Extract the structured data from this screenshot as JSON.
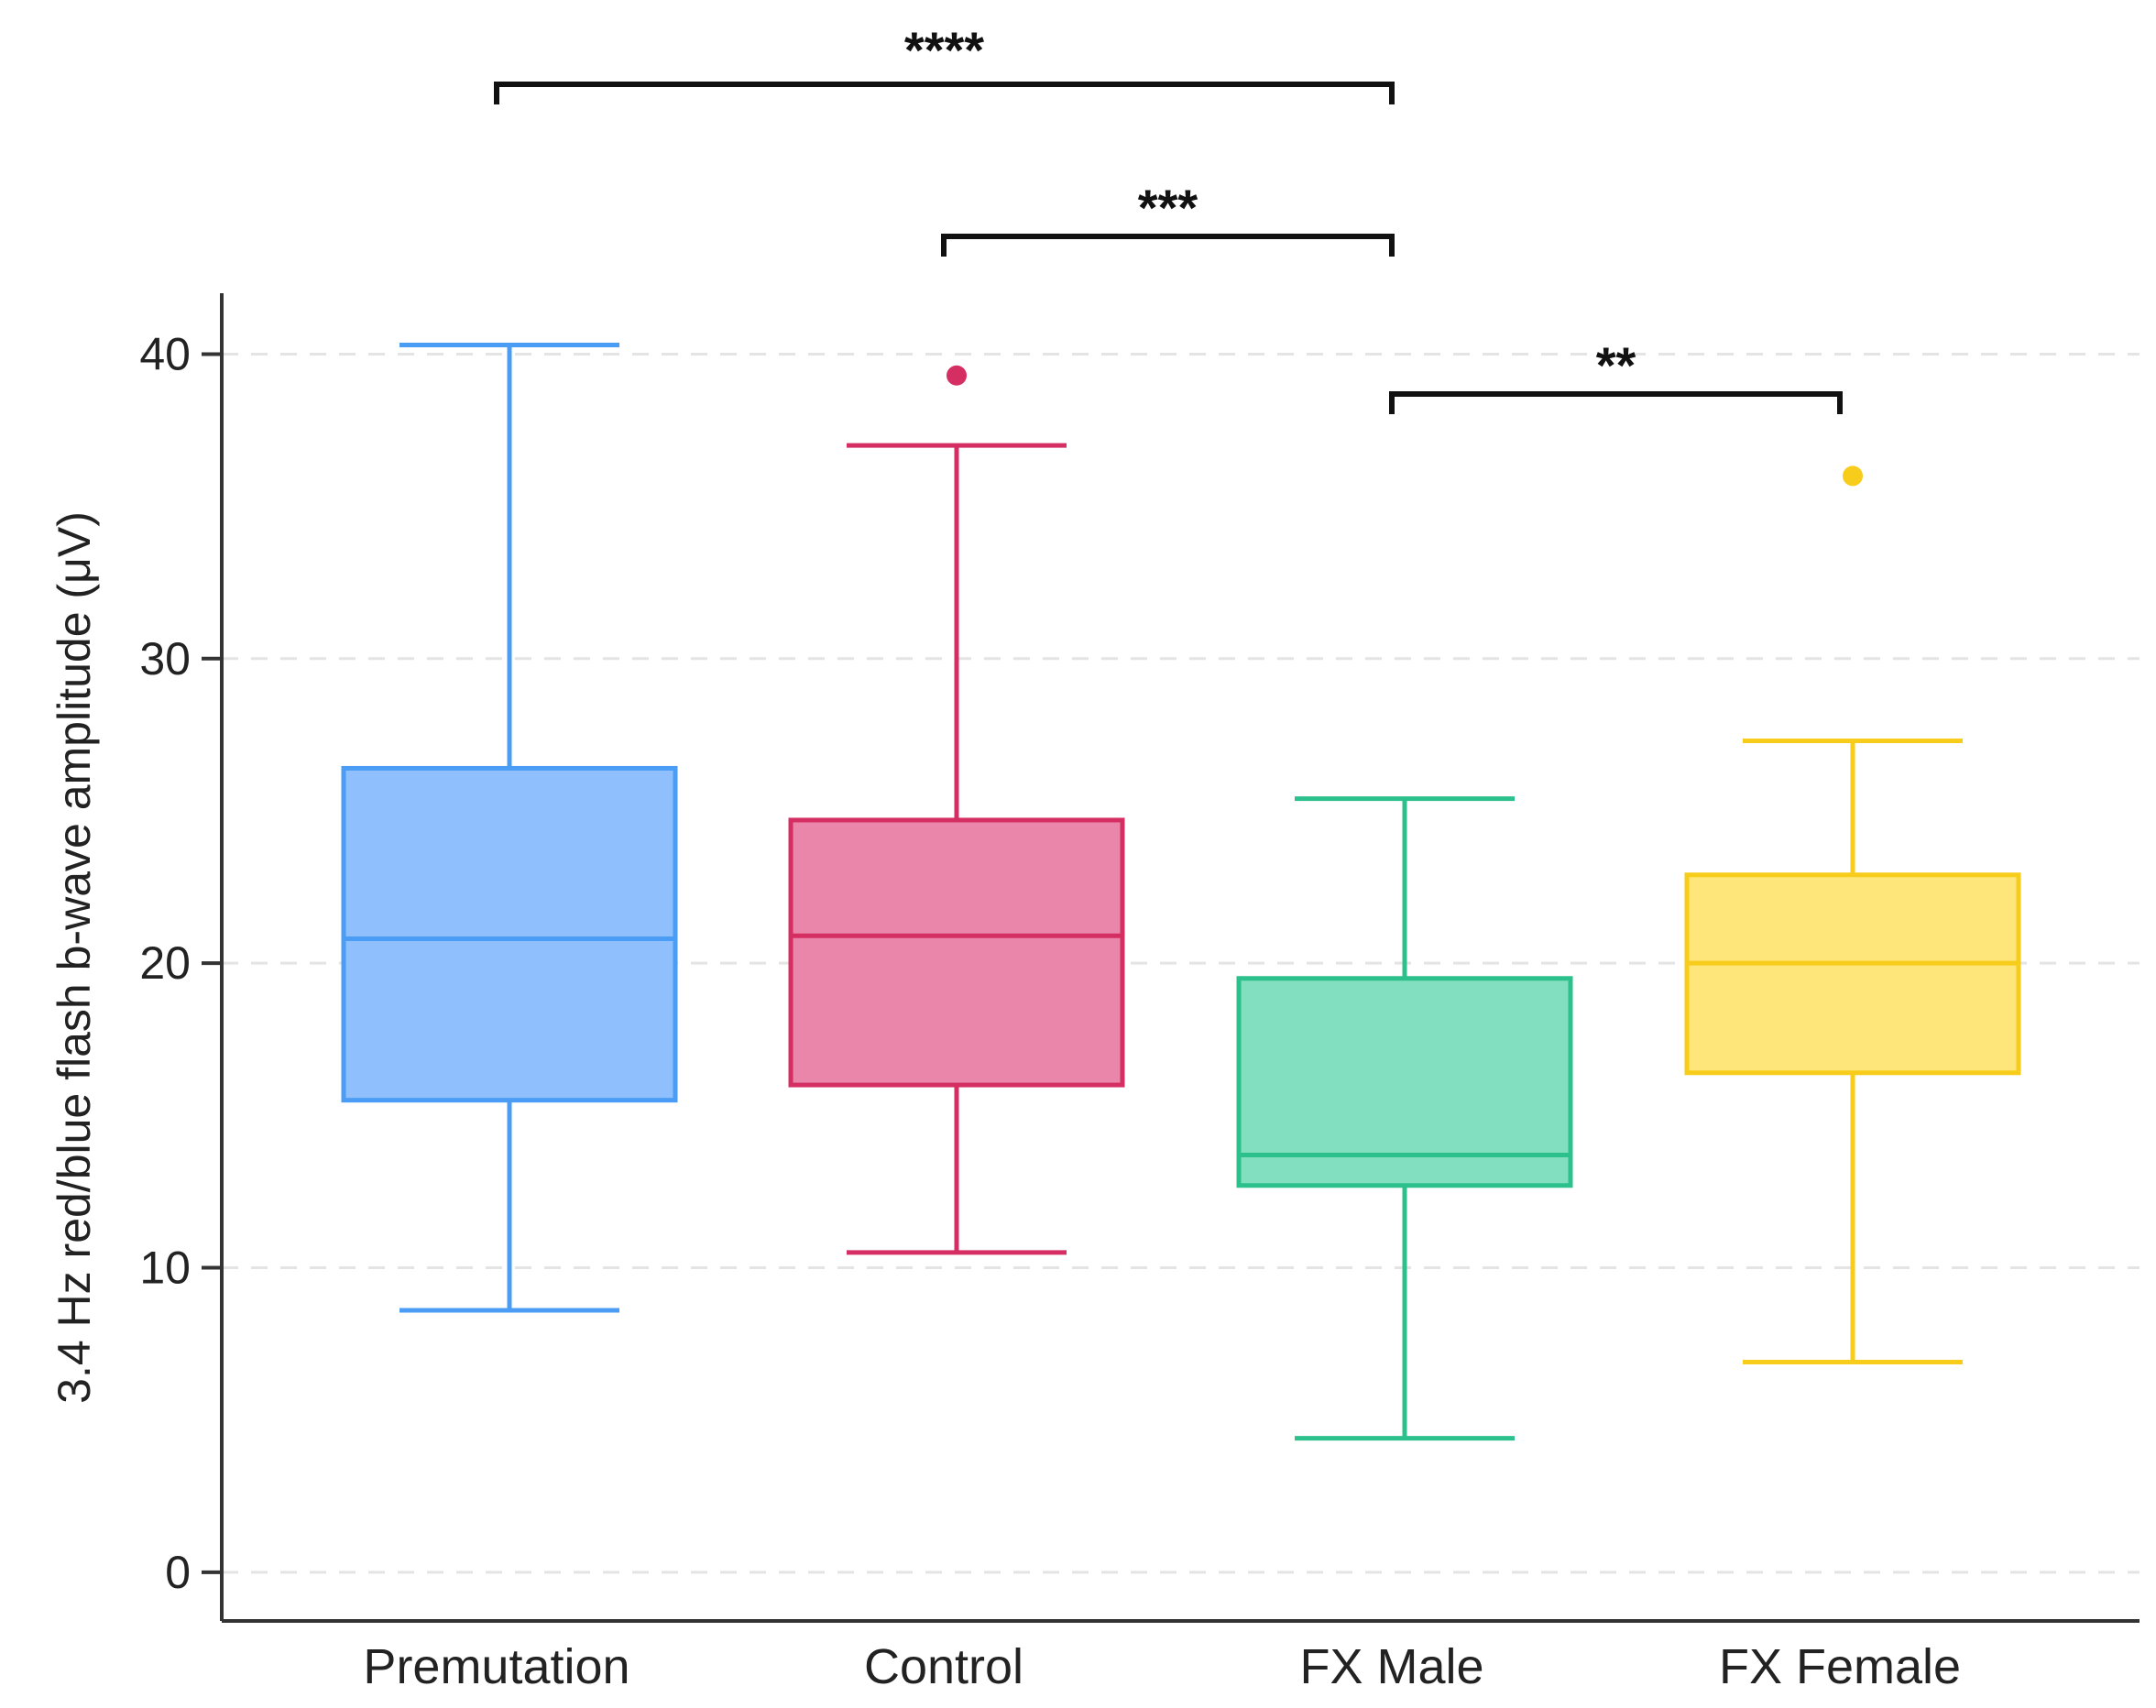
{
  "chart_data": {
    "type": "box",
    "title": "",
    "xlabel": "",
    "ylabel": "3.4 Hz red/blue flash b-wave amplitude (μV)",
    "ylim": [
      -1.6,
      42
    ],
    "yticks": [
      0,
      10,
      20,
      30,
      40
    ],
    "grid": true,
    "categories": [
      "Premutation",
      "Control",
      "FX Male",
      "FX Female"
    ],
    "boxes": [
      {
        "name": "Premutation",
        "whisker_low": 8.6,
        "q1": 15.5,
        "median": 20.8,
        "q3": 26.4,
        "whisker_high": 40.3,
        "outliers": [],
        "fill": "#8fbffc",
        "stroke": "#4a9cf5"
      },
      {
        "name": "Control",
        "whisker_low": 10.5,
        "q1": 16.0,
        "median": 20.9,
        "q3": 24.7,
        "whisker_high": 37.0,
        "outliers": [
          39.3
        ],
        "fill": "#e986a9",
        "stroke": "#d42e63"
      },
      {
        "name": "FX Male",
        "whisker_low": 4.4,
        "q1": 12.7,
        "median": 13.7,
        "q3": 19.5,
        "whisker_high": 25.4,
        "outliers": [],
        "fill": "#82dfbf",
        "stroke": "#2cc08c"
      },
      {
        "name": "FX Female",
        "whisker_low": 6.9,
        "q1": 16.4,
        "median": 20.0,
        "q3": 22.9,
        "whisker_high": 27.3,
        "outliers": [
          36.0
        ],
        "fill": "#fee67a",
        "stroke": "#f7cc1a"
      }
    ],
    "annotations": [
      {
        "from": "Premutation",
        "to": "FX Male",
        "label": "****"
      },
      {
        "from": "Control",
        "to": "FX Male",
        "label": "***"
      },
      {
        "from": "FX Male",
        "to": "FX Female",
        "label": "**"
      }
    ]
  }
}
